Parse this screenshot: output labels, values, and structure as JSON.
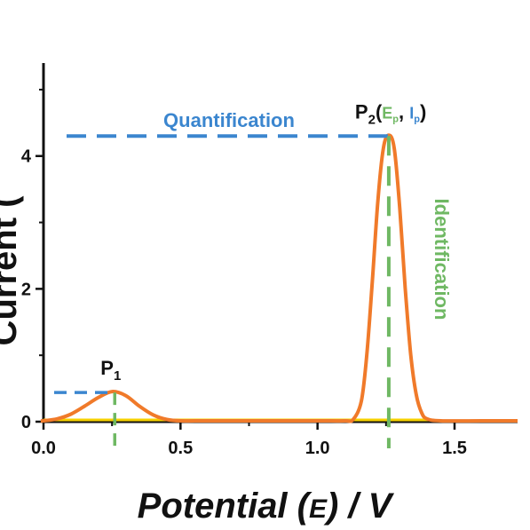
{
  "chart_data": {
    "type": "line",
    "xlabel_parts": {
      "a": "Potential (",
      "b": "E",
      "c": ") / V"
    },
    "ylabel": "Current (",
    "xlim": [
      0.0,
      1.73
    ],
    "ylim": [
      0.0,
      5.4
    ],
    "x_ticks": [
      0.0,
      0.5,
      1.0,
      1.5
    ],
    "x_tick_labels": [
      "0.0",
      "0.5",
      "1.0",
      "1.5"
    ],
    "y_ticks": [
      0,
      2,
      4
    ],
    "y_tick_labels": [
      "0",
      "2",
      "4"
    ],
    "series": [
      {
        "color": "#f07a2a",
        "x": [
          -0.01,
          0.0,
          0.05,
          0.1,
          0.15,
          0.2,
          0.25,
          0.3,
          0.35,
          0.4,
          0.45,
          0.5,
          0.6,
          0.8,
          1.0,
          1.1,
          1.13,
          1.16,
          1.18,
          1.2,
          1.22,
          1.24,
          1.26,
          1.28,
          1.3,
          1.32,
          1.34,
          1.36,
          1.38,
          1.4,
          1.45,
          1.6,
          1.73
        ],
        "y": [
          0.0,
          0.0,
          0.03,
          0.1,
          0.22,
          0.35,
          0.44,
          0.38,
          0.22,
          0.09,
          0.02,
          0.0,
          0.0,
          0.0,
          0.0,
          0.0,
          0.02,
          0.3,
          1.0,
          2.1,
          3.3,
          4.1,
          4.3,
          4.1,
          3.2,
          2.0,
          1.0,
          0.4,
          0.12,
          0.03,
          0.0,
          0.0,
          0.0
        ]
      }
    ],
    "baseline": {
      "color": "#f5d000",
      "y": 0.0,
      "x_range": [
        0.0,
        1.42
      ]
    },
    "peaks": [
      {
        "label_main": "P",
        "label_sub": "1",
        "x": 0.26,
        "y": 0.44
      },
      {
        "label_main": "P",
        "label_sub": "2",
        "x": 1.26,
        "y": 4.3,
        "suffix_parts": [
          "(",
          "E",
          "p",
          ", ",
          "I",
          "p",
          ")"
        ]
      }
    ],
    "annotations": {
      "quantification": {
        "text": "Quantification",
        "color": "#3b86cf"
      },
      "identification": {
        "text": "Identification",
        "color": "#6fb863"
      }
    },
    "colors": {
      "blue": "#3b86cf",
      "green": "#6fb863",
      "orange": "#f07a2a",
      "yellow": "#f5d000"
    }
  }
}
